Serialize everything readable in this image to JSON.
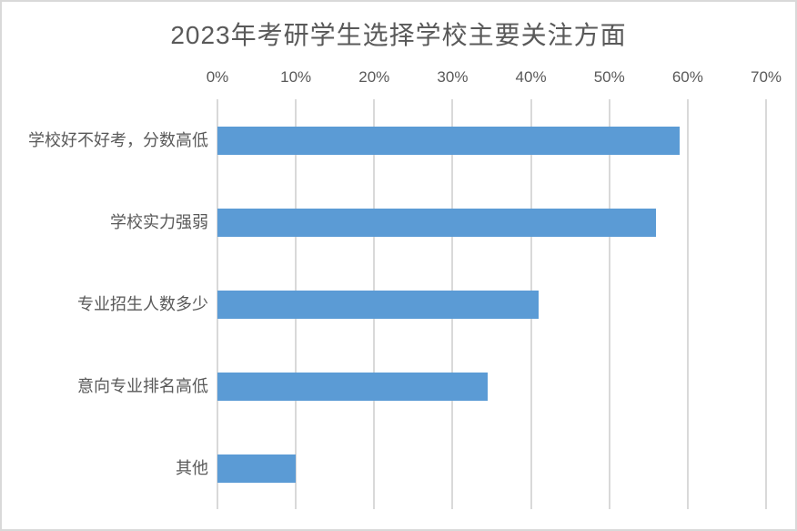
{
  "chart_data": {
    "type": "bar",
    "orientation": "horizontal",
    "title": "2023年考研学生选择学校主要关注方面",
    "categories": [
      "学校好不好考，分数高低",
      "学校实力强弱",
      "专业招生人数多少",
      "意向专业排名高低",
      "其他"
    ],
    "values": [
      59,
      56,
      41,
      34.5,
      10
    ],
    "value_unit": "%",
    "xlabel": "",
    "ylabel": "",
    "x_axis": {
      "position": "top",
      "min": 0,
      "max": 70,
      "tick_step": 10,
      "ticks": [
        "0%",
        "10%",
        "20%",
        "30%",
        "40%",
        "50%",
        "60%",
        "70%"
      ]
    },
    "grid": true,
    "legend": false,
    "colors": {
      "bar": "#5B9BD5",
      "text": "#595959",
      "gridline": "#D9D9D9",
      "border": "#D9D9D9",
      "background": "#FFFFFF"
    }
  }
}
